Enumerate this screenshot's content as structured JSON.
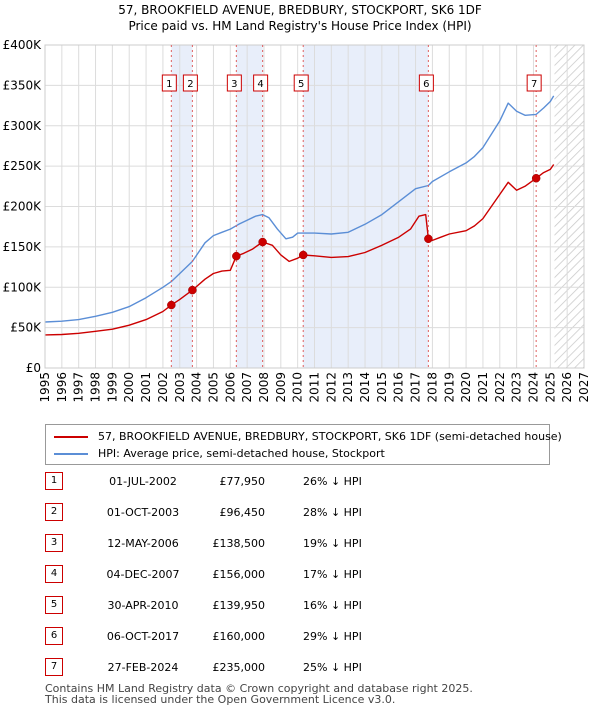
{
  "chart_data": {
    "type": "line",
    "title": "57, BROOKFIELD AVENUE, BREDBURY, STOCKPORT, SK6 1DF",
    "subtitle": "Price paid vs. HM Land Registry's House Price Index (HPI)",
    "xlim": [
      1995,
      2027
    ],
    "ylim": [
      0,
      400000
    ],
    "x_ticks": [
      "1995",
      "1996",
      "1997",
      "1998",
      "1999",
      "2000",
      "2001",
      "2002",
      "2003",
      "2004",
      "2005",
      "2006",
      "2007",
      "2008",
      "2009",
      "2010",
      "2011",
      "2012",
      "2013",
      "2014",
      "2015",
      "2016",
      "2017",
      "2018",
      "2019",
      "2020",
      "2021",
      "2022",
      "2023",
      "2024",
      "2025",
      "2026",
      "2027"
    ],
    "y_ticks": [
      {
        "value": 0,
        "label": "£0"
      },
      {
        "value": 50000,
        "label": "£50K"
      },
      {
        "value": 100000,
        "label": "£100K"
      },
      {
        "value": 150000,
        "label": "£150K"
      },
      {
        "value": 200000,
        "label": "£200K"
      },
      {
        "value": 250000,
        "label": "£250K"
      },
      {
        "value": 300000,
        "label": "£300K"
      },
      {
        "value": 350000,
        "label": "£350K"
      },
      {
        "value": 400000,
        "label": "£400K"
      }
    ],
    "forecast_start": 2025.25,
    "grid": true,
    "series": [
      {
        "name": "57, BROOKFIELD AVENUE, BREDBURY, STOCKPORT, SK6 1DF (semi-detached house)",
        "color": "#cc0000",
        "points": [
          [
            1995.0,
            41000
          ],
          [
            1996.0,
            41500
          ],
          [
            1997.0,
            43000
          ],
          [
            1998.0,
            45500
          ],
          [
            1999.0,
            48000
          ],
          [
            2000.0,
            53000
          ],
          [
            2001.0,
            60000
          ],
          [
            2002.0,
            70000
          ],
          [
            2002.5,
            77950
          ],
          [
            2003.0,
            85000
          ],
          [
            2003.75,
            96450
          ],
          [
            2004.5,
            110000
          ],
          [
            2005.0,
            117000
          ],
          [
            2005.5,
            120000
          ],
          [
            2006.0,
            121000
          ],
          [
            2006.36,
            138500
          ],
          [
            2006.8,
            142000
          ],
          [
            2007.3,
            147000
          ],
          [
            2007.92,
            156000
          ],
          [
            2008.5,
            152000
          ],
          [
            2009.0,
            140000
          ],
          [
            2009.5,
            132000
          ],
          [
            2010.0,
            136000
          ],
          [
            2010.33,
            139950
          ],
          [
            2011.0,
            139000
          ],
          [
            2012.0,
            137000
          ],
          [
            2013.0,
            138000
          ],
          [
            2014.0,
            143000
          ],
          [
            2015.0,
            152000
          ],
          [
            2016.0,
            162000
          ],
          [
            2016.7,
            172000
          ],
          [
            2017.2,
            188000
          ],
          [
            2017.6,
            190000
          ],
          [
            2017.76,
            160000
          ],
          [
            2018.0,
            158000
          ],
          [
            2018.5,
            162000
          ],
          [
            2019.0,
            166000
          ],
          [
            2020.0,
            170000
          ],
          [
            2020.5,
            176000
          ],
          [
            2021.0,
            185000
          ],
          [
            2022.0,
            215000
          ],
          [
            2022.5,
            230000
          ],
          [
            2023.0,
            220000
          ],
          [
            2023.5,
            225000
          ],
          [
            2024.16,
            235000
          ],
          [
            2024.6,
            242000
          ],
          [
            2025.0,
            246000
          ],
          [
            2025.2,
            252000
          ]
        ]
      },
      {
        "name": "HPI: Average price, semi-detached house, Stockport",
        "color": "#5b8ed6",
        "points": [
          [
            1995.0,
            57000
          ],
          [
            1996.0,
            58000
          ],
          [
            1997.0,
            60000
          ],
          [
            1998.0,
            64000
          ],
          [
            1999.0,
            69000
          ],
          [
            2000.0,
            76000
          ],
          [
            2001.0,
            87000
          ],
          [
            2002.0,
            100000
          ],
          [
            2002.5,
            107000
          ],
          [
            2003.0,
            117000
          ],
          [
            2003.75,
            132000
          ],
          [
            2004.5,
            155000
          ],
          [
            2005.0,
            164000
          ],
          [
            2005.5,
            168000
          ],
          [
            2006.0,
            172000
          ],
          [
            2006.5,
            178000
          ],
          [
            2007.0,
            183000
          ],
          [
            2007.5,
            188000
          ],
          [
            2007.92,
            190000
          ],
          [
            2008.3,
            186000
          ],
          [
            2008.8,
            172000
          ],
          [
            2009.3,
            160000
          ],
          [
            2009.7,
            162000
          ],
          [
            2010.0,
            167000
          ],
          [
            2011.0,
            167000
          ],
          [
            2012.0,
            166000
          ],
          [
            2013.0,
            168000
          ],
          [
            2014.0,
            178000
          ],
          [
            2015.0,
            190000
          ],
          [
            2016.0,
            206000
          ],
          [
            2017.0,
            222000
          ],
          [
            2017.76,
            226000
          ],
          [
            2018.0,
            231000
          ],
          [
            2019.0,
            243000
          ],
          [
            2020.0,
            254000
          ],
          [
            2020.5,
            262000
          ],
          [
            2021.0,
            273000
          ],
          [
            2022.0,
            306000
          ],
          [
            2022.5,
            328000
          ],
          [
            2023.0,
            318000
          ],
          [
            2023.5,
            313000
          ],
          [
            2024.16,
            314000
          ],
          [
            2024.6,
            322000
          ],
          [
            2025.0,
            330000
          ],
          [
            2025.2,
            337000
          ]
        ]
      }
    ],
    "markers": [
      {
        "label": "1",
        "x": 2002.5,
        "y": 77950
      },
      {
        "label": "2",
        "x": 2003.75,
        "y": 96450
      },
      {
        "label": "3",
        "x": 2006.36,
        "y": 138500
      },
      {
        "label": "4",
        "x": 2007.92,
        "y": 156000
      },
      {
        "label": "5",
        "x": 2010.33,
        "y": 139950
      },
      {
        "label": "6",
        "x": 2017.76,
        "y": 160000
      },
      {
        "label": "7",
        "x": 2024.16,
        "y": 235000
      }
    ],
    "shaded_ranges": [
      [
        2002.5,
        2003.75
      ],
      [
        2006.36,
        2007.92
      ],
      [
        2010.33,
        2017.76
      ]
    ]
  },
  "legend": {
    "property_label": "57, BROOKFIELD AVENUE, BREDBURY, STOCKPORT, SK6 1DF (semi-detached house)",
    "hpi_label": "HPI: Average price, semi-detached house, Stockport"
  },
  "transactions": [
    {
      "num": "1",
      "date": "01-JUL-2002",
      "price": "£77,950",
      "hpi": "26% ↓ HPI"
    },
    {
      "num": "2",
      "date": "01-OCT-2003",
      "price": "£96,450",
      "hpi": "28% ↓ HPI"
    },
    {
      "num": "3",
      "date": "12-MAY-2006",
      "price": "£138,500",
      "hpi": "19% ↓ HPI"
    },
    {
      "num": "4",
      "date": "04-DEC-2007",
      "price": "£156,000",
      "hpi": "17% ↓ HPI"
    },
    {
      "num": "5",
      "date": "30-APR-2010",
      "price": "£139,950",
      "hpi": "16% ↓ HPI"
    },
    {
      "num": "6",
      "date": "06-OCT-2017",
      "price": "£160,000",
      "hpi": "29% ↓ HPI"
    },
    {
      "num": "7",
      "date": "27-FEB-2024",
      "price": "£235,000",
      "hpi": "25% ↓ HPI"
    }
  ],
  "footer": {
    "line1": "Contains HM Land Registry data © Crown copyright and database right 2025.",
    "line2": "This data is licensed under the Open Government Licence v3.0."
  }
}
